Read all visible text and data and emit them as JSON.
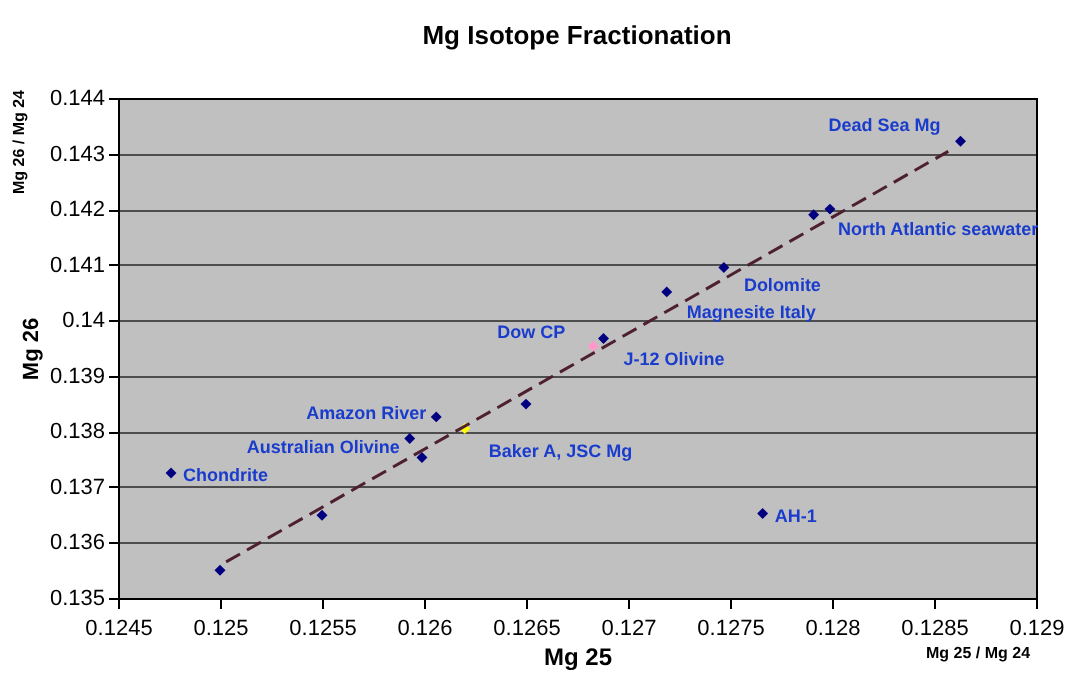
{
  "chart_data": {
    "type": "scatter",
    "title": "Mg Isotope Fractionation",
    "xlabel": "Mg 25",
    "ylabel": "Mg 26",
    "xlim": [
      0.1245,
      0.129
    ],
    "xticks": [
      0.1245,
      0.125,
      0.1255,
      0.126,
      0.1265,
      0.127,
      0.1275,
      0.128,
      0.1285,
      0.129
    ],
    "ylim": [
      0.135,
      0.144
    ],
    "yticks": [
      0.135,
      0.136,
      0.137,
      0.138,
      0.139,
      0.14,
      0.141,
      0.142,
      0.143,
      0.144
    ],
    "grid": "y",
    "legend": false,
    "marker": "diamond",
    "series": [
      {
        "x": [
          0.12476,
          0.125,
          0.1255,
          0.12593,
          0.12599,
          0.12606,
          0.1262,
          0.1265,
          0.12683,
          0.12688,
          0.12719,
          0.12747,
          0.12791,
          0.12799,
          0.12863,
          0.12766
        ],
        "values": [
          0.13725,
          0.1355,
          0.13649,
          0.13787,
          0.13753,
          0.13826,
          0.13805,
          0.13849,
          0.13953,
          0.13967,
          0.14051,
          0.14095,
          0.1419,
          0.142,
          0.14322,
          0.13652
        ],
        "colors": [
          "#000080",
          "#000080",
          "#000080",
          "#000080",
          "#000080",
          "#000080",
          "#ffff00",
          "#000080",
          "#ff99cc",
          "#000080",
          "#000080",
          "#000080",
          "#000080",
          "#000080",
          "#000080",
          "#000080"
        ]
      },
      {
        "type": "line",
        "color": "#4d1f2f",
        "line_style": "dashed",
        "marker": "none",
        "x": [
          0.12503,
          0.12857
        ],
        "values": [
          0.13565,
          0.14304
        ]
      }
    ],
    "annotations": [
      "Mg 26 / Mg 24",
      "Mg 25 / Mg 24",
      {
        "text": "Dead Sea Mg",
        "x": 0.12863,
        "y": 0.14322
      },
      {
        "text": "North Atlantic seawater",
        "x": 0.12799,
        "y": 0.142
      },
      {
        "text": "Dolomite",
        "x": 0.12747,
        "y": 0.14095
      },
      {
        "text": "Magnesite Italy",
        "x": 0.12719,
        "y": 0.14051
      },
      {
        "text": "J-12 Olivine",
        "x": 0.12688,
        "y": 0.13967
      },
      {
        "text": "Dow CP",
        "x": 0.12683,
        "y": 0.13953
      },
      {
        "text": "Amazon River",
        "x": 0.12606,
        "y": 0.13826
      },
      {
        "text": "Australian Olivine",
        "x": 0.12593,
        "y": 0.13787
      },
      {
        "text": "Baker A, JSC Mg",
        "x": 0.1262,
        "y": 0.13805
      },
      {
        "text": "Chondrite",
        "x": 0.12476,
        "y": 0.13725
      },
      {
        "text": "AH-1",
        "x": 0.12766,
        "y": 0.13652
      }
    ]
  }
}
